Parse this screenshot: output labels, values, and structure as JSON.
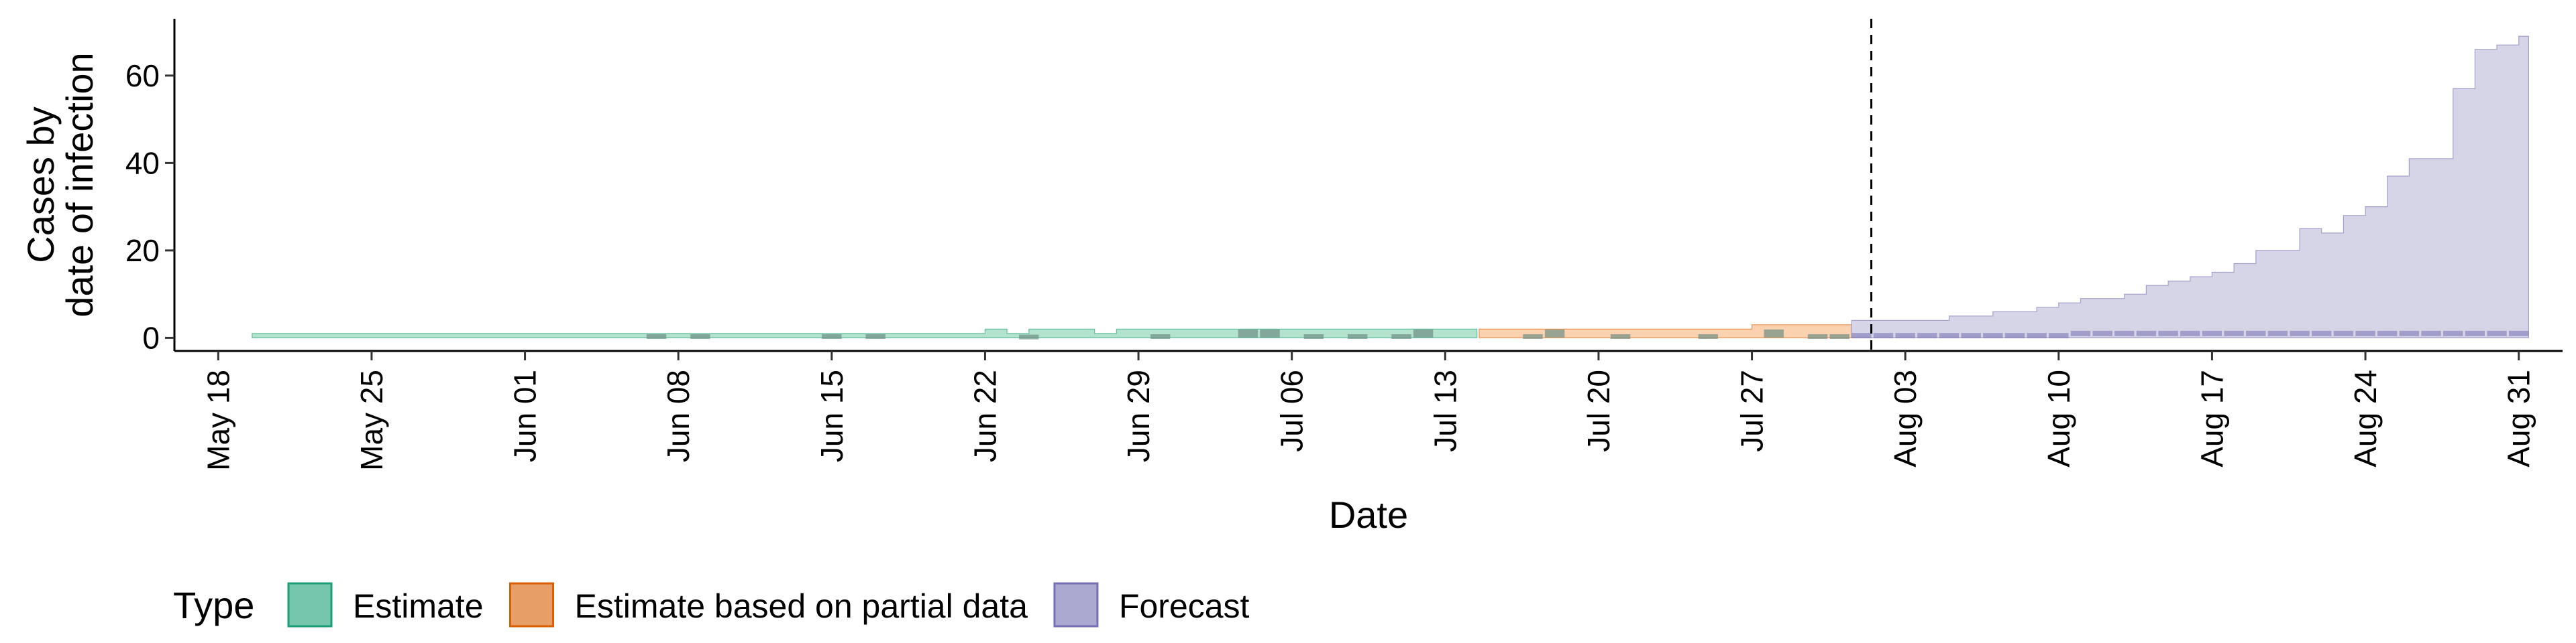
{
  "chart_data": {
    "type": "area",
    "xlabel": "Date",
    "ylabel_lines": [
      "Cases by",
      "date of infection"
    ],
    "x_range": [
      "2020-05-16",
      "2020-09-02"
    ],
    "ylim": [
      -3,
      73
    ],
    "y_ticks": [
      0,
      20,
      40,
      60
    ],
    "x_ticks": [
      {
        "date": "2020-05-18",
        "label": "May 18"
      },
      {
        "date": "2020-05-25",
        "label": "May 25"
      },
      {
        "date": "2020-06-01",
        "label": "Jun 01"
      },
      {
        "date": "2020-06-08",
        "label": "Jun 08"
      },
      {
        "date": "2020-06-15",
        "label": "Jun 15"
      },
      {
        "date": "2020-06-22",
        "label": "Jun 22"
      },
      {
        "date": "2020-06-29",
        "label": "Jun 29"
      },
      {
        "date": "2020-07-06",
        "label": "Jul 06"
      },
      {
        "date": "2020-07-13",
        "label": "Jul 13"
      },
      {
        "date": "2020-07-20",
        "label": "Jul 20"
      },
      {
        "date": "2020-07-27",
        "label": "Jul 27"
      },
      {
        "date": "2020-08-03",
        "label": "Aug 03"
      },
      {
        "date": "2020-08-10",
        "label": "Aug 10"
      },
      {
        "date": "2020-08-17",
        "label": "Aug 17"
      },
      {
        "date": "2020-08-24",
        "label": "Aug 24"
      },
      {
        "date": "2020-08-31",
        "label": "Aug 31"
      }
    ],
    "forecast_date": "2020-08-01",
    "grid": false,
    "legend_position": "bottom",
    "legend_title": "Type",
    "series": [
      {
        "name": "Estimate",
        "color": "#1b9e77",
        "fill": "#b3e2cd",
        "x": [
          "2020-05-20",
          "2020-06-21",
          "2020-06-22",
          "2020-06-23",
          "2020-06-24",
          "2020-06-25",
          "2020-06-26",
          "2020-06-27",
          "2020-06-28",
          "2020-07-14"
        ],
        "lower": [
          0,
          0,
          0,
          0,
          0,
          0,
          0,
          0,
          0,
          0
        ],
        "upper": [
          1,
          1,
          2,
          1,
          2,
          2,
          2,
          1,
          2,
          2
        ],
        "median_segments": [
          {
            "x": "2020-06-07",
            "y": 0.3
          },
          {
            "x": "2020-06-09",
            "y": 0.3
          },
          {
            "x": "2020-06-15",
            "y": 0.3
          },
          {
            "x": "2020-06-17",
            "y": 0.3
          },
          {
            "x": "2020-06-24",
            "y": 0.2
          },
          {
            "x": "2020-06-30",
            "y": 0.3
          },
          {
            "x": "2020-07-04",
            "y": 1
          },
          {
            "x": "2020-07-05",
            "y": 1
          },
          {
            "x": "2020-07-07",
            "y": 0.3
          },
          {
            "x": "2020-07-09",
            "y": 0.3
          },
          {
            "x": "2020-07-11",
            "y": 0.3
          },
          {
            "x": "2020-07-12",
            "y": 1
          }
        ]
      },
      {
        "name": "Estimate based on partial data",
        "color": "#d95f02",
        "fill": "#fbd2b0",
        "x": [
          "2020-07-15",
          "2020-07-26",
          "2020-07-27",
          "2020-08-01"
        ],
        "lower": [
          0,
          0,
          0,
          0
        ],
        "upper": [
          2,
          2,
          3,
          3
        ],
        "median_segments": [
          {
            "x": "2020-07-17",
            "y": 0.3
          },
          {
            "x": "2020-07-18",
            "y": 1
          },
          {
            "x": "2020-07-21",
            "y": 0.3
          },
          {
            "x": "2020-07-25",
            "y": 0.3
          },
          {
            "x": "2020-07-28",
            "y": 1
          },
          {
            "x": "2020-07-30",
            "y": 0.3
          },
          {
            "x": "2020-07-31",
            "y": 0.3
          }
        ]
      },
      {
        "name": "Forecast",
        "color": "#7570b3",
        "fill": "#d6d5e8",
        "x": [
          "2020-08-01",
          "2020-08-02",
          "2020-08-03",
          "2020-08-04",
          "2020-08-05",
          "2020-08-06",
          "2020-08-07",
          "2020-08-08",
          "2020-08-09",
          "2020-08-10",
          "2020-08-11",
          "2020-08-12",
          "2020-08-13",
          "2020-08-14",
          "2020-08-15",
          "2020-08-16",
          "2020-08-17",
          "2020-08-18",
          "2020-08-19",
          "2020-08-20",
          "2020-08-21",
          "2020-08-22",
          "2020-08-23",
          "2020-08-24",
          "2020-08-25",
          "2020-08-26",
          "2020-08-27",
          "2020-08-28",
          "2020-08-29",
          "2020-08-30",
          "2020-08-31"
        ],
        "lower": [
          0,
          0,
          0,
          0,
          0,
          0,
          0,
          0,
          0,
          0,
          0,
          0,
          0,
          0,
          0,
          0,
          0,
          0,
          0,
          0,
          0,
          0,
          0,
          0,
          0,
          0,
          0,
          0,
          0,
          0,
          0
        ],
        "upper": [
          4,
          4,
          4,
          4,
          5,
          5,
          6,
          6,
          7,
          8,
          9,
          9,
          10,
          12,
          13,
          14,
          15,
          17,
          20,
          20,
          25,
          24,
          28,
          30,
          37,
          41,
          41,
          57,
          66,
          67,
          69
        ],
        "median": [
          0.5,
          0.5,
          0.5,
          0.5,
          0.5,
          0.5,
          0.5,
          0.5,
          0.5,
          0.5,
          1,
          1,
          1,
          1,
          1,
          1,
          1,
          1,
          1,
          1,
          1,
          1,
          1,
          1,
          1,
          1,
          1,
          1,
          1,
          1,
          1
        ]
      }
    ]
  }
}
